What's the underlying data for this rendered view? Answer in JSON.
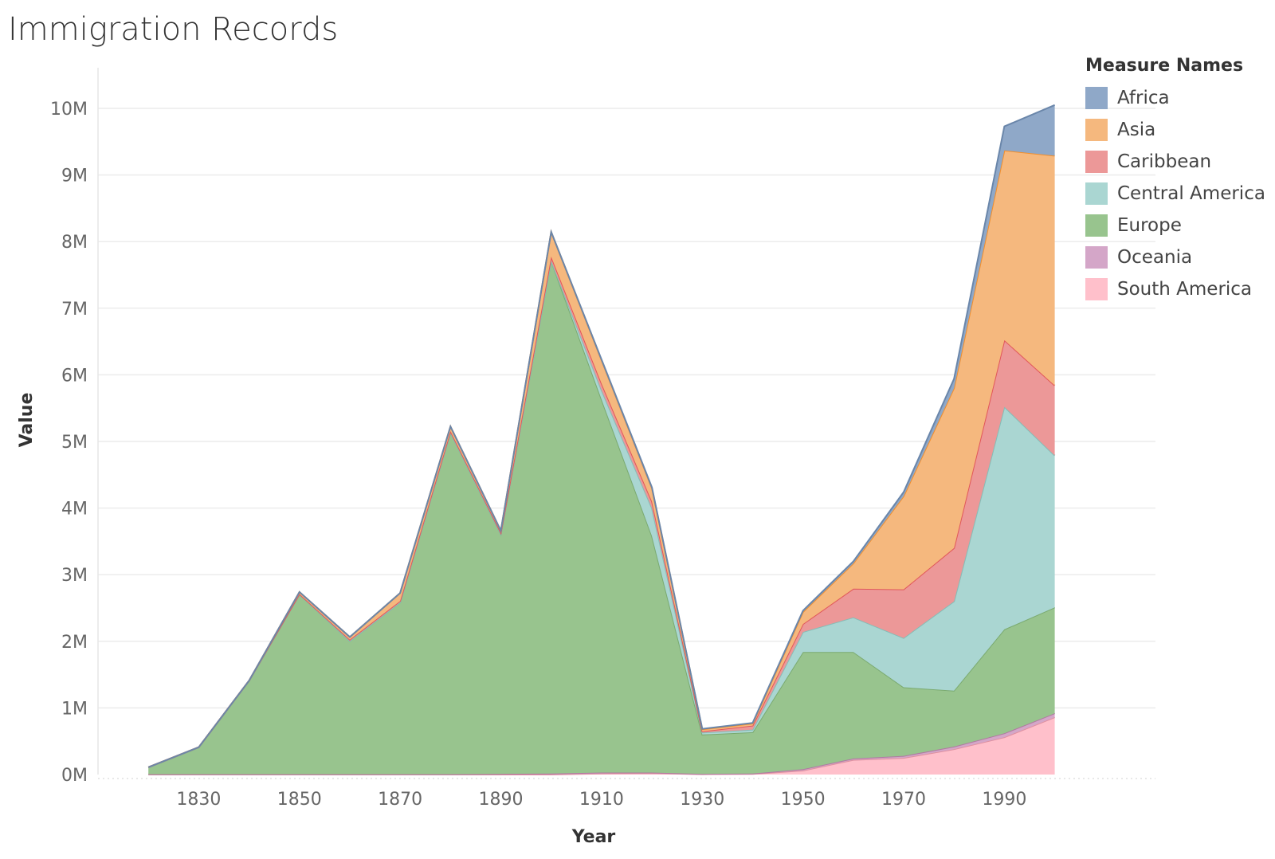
{
  "title": "Immigration Records",
  "chart_data": {
    "type": "area",
    "stacked": true,
    "title": "Immigration Records",
    "xlabel": "Year",
    "ylabel": "Value",
    "x": [
      1820,
      1830,
      1840,
      1850,
      1860,
      1870,
      1880,
      1890,
      1900,
      1910,
      1920,
      1930,
      1940,
      1950,
      1960,
      1970,
      1980,
      1990,
      2000
    ],
    "xticks": [
      "1830",
      "1850",
      "1870",
      "1890",
      "1910",
      "1930",
      "1950",
      "1970",
      "1990"
    ],
    "xtick_values": [
      1830,
      1850,
      1870,
      1890,
      1910,
      1930,
      1950,
      1970,
      1990
    ],
    "ylim": [
      0,
      10000000
    ],
    "yticks": [
      "0M",
      "1M",
      "2M",
      "3M",
      "4M",
      "5M",
      "6M",
      "7M",
      "8M",
      "9M",
      "10M"
    ],
    "grid": true,
    "legend_title": "Measure Names",
    "legend_position": "right",
    "series": [
      {
        "name": "South America",
        "color": "#ffc0cb",
        "stroke": "#e0909f",
        "values": [
          0,
          0,
          0,
          0,
          0,
          0,
          0,
          0,
          0,
          15000,
          20000,
          5000,
          10000,
          60000,
          220000,
          250000,
          380000,
          560000,
          860000
        ]
      },
      {
        "name": "Oceania",
        "color": "#d4a6c8",
        "stroke": "#b07aa1",
        "values": [
          5000,
          5000,
          5000,
          5000,
          5000,
          5000,
          5000,
          10000,
          15000,
          15000,
          10000,
          5000,
          5000,
          20000,
          20000,
          30000,
          40000,
          60000,
          60000
        ]
      },
      {
        "name": "Europe",
        "color": "#98c48e",
        "stroke": "#7aaa70",
        "values": [
          100000,
          400000,
          1400000,
          2700000,
          2000000,
          2580000,
          5130000,
          3600000,
          7700000,
          5600000,
          3550000,
          590000,
          620000,
          1760000,
          1600000,
          1030000,
          840000,
          1560000,
          1590000
        ]
      },
      {
        "name": "Central America",
        "color": "#aad6d2",
        "stroke": "#86bcb6",
        "values": [
          0,
          0,
          0,
          0,
          0,
          0,
          0,
          0,
          0,
          140000,
          420000,
          30000,
          40000,
          300000,
          520000,
          740000,
          1340000,
          3340000,
          2280000
        ]
      },
      {
        "name": "Caribbean",
        "color": "#ec9898",
        "stroke": "#e15759",
        "values": [
          5000,
          5000,
          5000,
          5000,
          20000,
          20000,
          20000,
          20000,
          60000,
          100000,
          100000,
          20000,
          60000,
          120000,
          430000,
          730000,
          800000,
          1000000,
          1050000
        ]
      },
      {
        "name": "Asia",
        "color": "#f5b87e",
        "stroke": "#f28e2b",
        "values": [
          0,
          0,
          0,
          30000,
          40000,
          120000,
          70000,
          30000,
          370000,
          350000,
          200000,
          30000,
          30000,
          180000,
          380000,
          1400000,
          2400000,
          2850000,
          3450000
        ]
      },
      {
        "name": "Africa",
        "color": "#8fa8c8",
        "stroke": "#6a86aa",
        "values": [
          0,
          0,
          0,
          0,
          0,
          0,
          0,
          0,
          0,
          10000,
          10000,
          5000,
          10000,
          20000,
          30000,
          60000,
          140000,
          360000,
          760000
        ]
      }
    ],
    "legend_order": [
      "Africa",
      "Asia",
      "Caribbean",
      "Central America",
      "Europe",
      "Oceania",
      "South America"
    ]
  }
}
